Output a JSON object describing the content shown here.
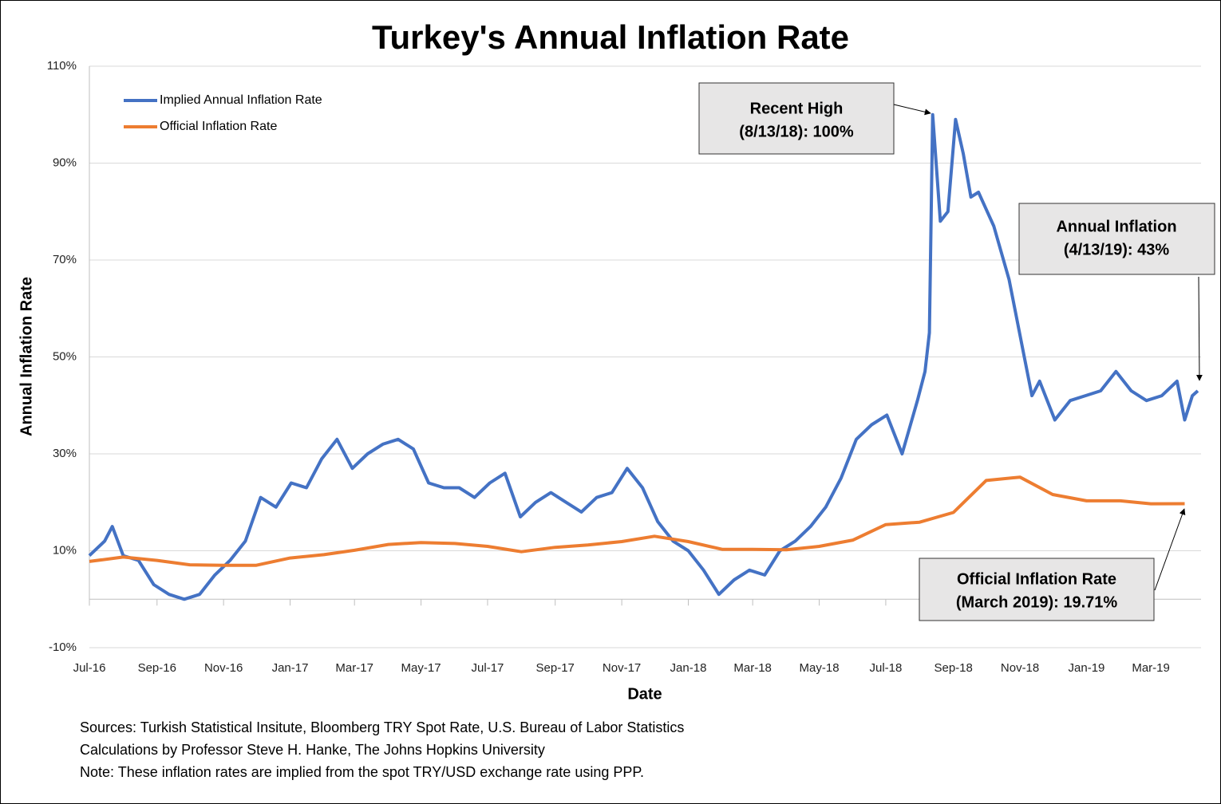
{
  "chart_data": {
    "type": "line",
    "title": "Turkey's Annual Inflation Rate",
    "x_label": "Date",
    "y_label": "Annual Inflation Rate",
    "xlim": [
      "7/1/16",
      "4/16/19"
    ],
    "xticks": [
      "Jul-16",
      "Sep-16",
      "Nov-16",
      "Jan-17",
      "Mar-17",
      "May-17",
      "Jul-17",
      "Sep-17",
      "Nov-17",
      "Jan-18",
      "Mar-18",
      "May-18",
      "Jul-18",
      "Sep-18",
      "Nov-18",
      "Jan-19",
      "Mar-19"
    ],
    "ylim": [
      -10,
      110
    ],
    "yticks": [
      {
        "value": -10,
        "label": "-10%"
      },
      {
        "value": 10,
        "label": "10%"
      },
      {
        "value": 30,
        "label": "30%"
      },
      {
        "value": 50,
        "label": "50%"
      },
      {
        "value": 70,
        "label": "70%"
      },
      {
        "value": 90,
        "label": "90%"
      },
      {
        "value": 110,
        "label": "110%"
      }
    ],
    "grid": true,
    "legend": "upper-left",
    "series": [
      {
        "name": "Implied Annual Inflation Rate",
        "color": "#4472c4",
        "x": [
          "7/1/16",
          "7/15/16",
          "7/22/16",
          "8/1/16",
          "8/15/16",
          "8/29/16",
          "9/12/16",
          "9/26/16",
          "10/10/16",
          "10/24/16",
          "11/7/16",
          "11/21/16",
          "12/5/16",
          "12/19/16",
          "1/2/17",
          "1/16/17",
          "1/30/17",
          "2/13/17",
          "2/27/17",
          "3/13/17",
          "3/27/17",
          "4/10/17",
          "4/24/17",
          "5/8/17",
          "5/22/17",
          "6/5/17",
          "6/19/17",
          "7/3/17",
          "7/17/17",
          "7/31/17",
          "8/14/17",
          "8/28/17",
          "9/11/17",
          "9/25/17",
          "10/9/17",
          "10/23/17",
          "11/6/17",
          "11/20/17",
          "12/4/17",
          "12/18/17",
          "1/1/18",
          "1/15/18",
          "1/29/18",
          "2/12/18",
          "2/26/18",
          "3/12/18",
          "3/26/18",
          "4/9/18",
          "4/23/18",
          "5/7/18",
          "5/21/18",
          "6/4/18",
          "6/18/18",
          "7/2/18",
          "7/16/18",
          "7/30/18",
          "8/6/18",
          "8/10/18",
          "8/13/18",
          "8/20/18",
          "8/27/18",
          "9/3/18",
          "9/10/18",
          "9/17/18",
          "9/24/18",
          "10/8/18",
          "10/22/18",
          "11/5/18",
          "11/12/18",
          "11/19/18",
          "12/3/18",
          "12/17/18",
          "12/31/18",
          "1/14/19",
          "1/28/19",
          "2/11/19",
          "2/25/19",
          "3/11/19",
          "3/25/19",
          "4/1/19",
          "4/8/19",
          "4/13/19"
        ],
        "values": [
          9,
          12,
          15,
          9,
          8,
          3,
          1,
          0,
          1,
          5,
          8,
          12,
          21,
          19,
          24,
          23,
          29,
          33,
          27,
          30,
          32,
          33,
          31,
          24,
          23,
          23,
          21,
          24,
          26,
          17,
          20,
          22,
          20,
          18,
          21,
          22,
          27,
          23,
          16,
          12,
          10,
          6,
          1,
          4,
          6,
          5,
          10,
          12,
          15,
          19,
          25,
          33,
          36,
          38,
          30,
          41,
          47,
          55,
          100,
          78,
          80,
          99,
          92,
          83,
          84,
          77,
          66,
          50,
          42,
          45,
          37,
          41,
          42,
          43,
          47,
          43,
          41,
          42,
          45,
          37,
          42,
          43
        ]
      },
      {
        "name": "Official Inflation Rate",
        "color": "#ed7d31",
        "x": [
          "Jul-16",
          "Aug-16",
          "Sep-16",
          "Oct-16",
          "Nov-16",
          "Dec-16",
          "Jan-17",
          "Feb-17",
          "Mar-17",
          "Apr-17",
          "May-17",
          "Jun-17",
          "Jul-17",
          "Aug-17",
          "Sep-17",
          "Oct-17",
          "Nov-17",
          "Dec-17",
          "Jan-18",
          "Feb-18",
          "Mar-18",
          "Apr-18",
          "May-18",
          "Jun-18",
          "Jul-18",
          "Aug-18",
          "Sep-18",
          "Oct-18",
          "Nov-18",
          "Dec-18",
          "Jan-19",
          "Feb-19",
          "Mar-19",
          "Apr-19"
        ],
        "values": [
          7.8,
          8.7,
          8.0,
          7.1,
          7.0,
          7.0,
          8.5,
          9.2,
          10.1,
          11.3,
          11.7,
          11.5,
          10.9,
          9.8,
          10.7,
          11.2,
          11.9,
          13.0,
          11.9,
          10.3,
          10.3,
          10.2,
          10.9,
          12.2,
          15.4,
          15.9,
          17.9,
          24.5,
          25.2,
          21.6,
          20.3,
          20.3,
          19.7,
          19.71
        ]
      }
    ],
    "annotations": [
      {
        "lines": [
          "Recent High",
          "(8/13/18): 100%"
        ]
      },
      {
        "lines": [
          "Annual  Inflation",
          "(4/13/19): 43%"
        ]
      },
      {
        "lines": [
          "Official Inflation Rate",
          "(March 2019): 19.71%"
        ]
      }
    ],
    "notes": [
      "Sources: Turkish Statistical Insitute, Bloomberg TRY Spot Rate, U.S. Bureau of Labor Statistics",
      "Calculations by Professor Steve H. Hanke, The Johns Hopkins University",
      "Note: These inflation rates are implied from the spot TRY/USD exchange rate using PPP."
    ]
  }
}
